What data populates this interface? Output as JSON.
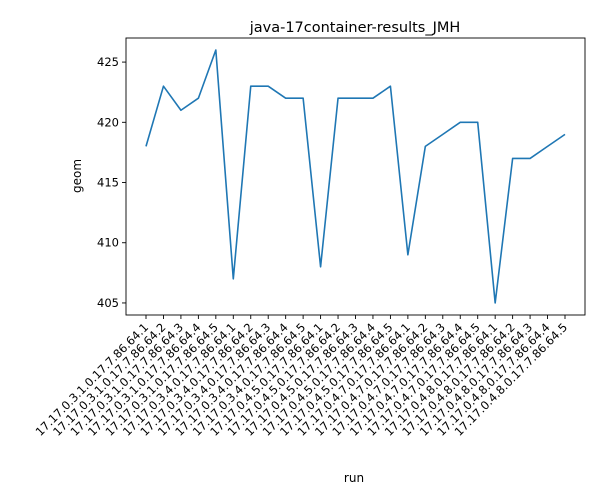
{
  "chart_data": {
    "type": "line",
    "title": "java-17container-results_JMH",
    "xlabel": "run",
    "ylabel": "geom",
    "ylim": [
      404,
      427
    ],
    "yticks": [
      405,
      410,
      415,
      420,
      425
    ],
    "grid": false,
    "line_color": "#1f77b4",
    "categories": [
      "17.17.0.3.1.0.17.7.86.64.1",
      "17.17.0.3.1.0.17.7.86.64.2",
      "17.17.0.3.1.0.17.7.86.64.3",
      "17.17.0.3.1.0.17.7.86.64.4",
      "17.17.0.3.1.0.17.7.86.64.5",
      "17.17.0.3.4.0.17.7.86.64.1",
      "17.17.0.3.4.0.17.7.86.64.2",
      "17.17.0.3.4.0.17.7.86.64.3",
      "17.17.0.3.4.0.17.7.86.64.4",
      "17.17.0.3.4.0.17.7.86.64.5",
      "17.17.0.4.5.0.17.7.86.64.1",
      "17.17.0.4.5.0.17.7.86.64.2",
      "17.17.0.4.5.0.17.7.86.64.3",
      "17.17.0.4.5.0.17.7.86.64.4",
      "17.17.0.4.5.0.17.7.86.64.5",
      "17.17.0.4.7.0.17.7.86.64.1",
      "17.17.0.4.7.0.17.7.86.64.2",
      "17.17.0.4.7.0.17.7.86.64.3",
      "17.17.0.4.7.0.17.7.86.64.4",
      "17.17.0.4.7.0.17.7.86.64.5",
      "17.17.0.4.8.0.17.7.86.64.1",
      "17.17.0.4.8.0.17.7.86.64.2",
      "17.17.0.4.8.0.17.7.86.64.3",
      "17.17.0.4.8.0.17.7.86.64.4",
      "17.17.0.4.8.0.17.7.86.64.5"
    ],
    "values": [
      418,
      423,
      421,
      422,
      426,
      407,
      423,
      423,
      422,
      422,
      408,
      422,
      422,
      422,
      423,
      409,
      418,
      419,
      420,
      420,
      405,
      417,
      417,
      418,
      419
    ]
  }
}
